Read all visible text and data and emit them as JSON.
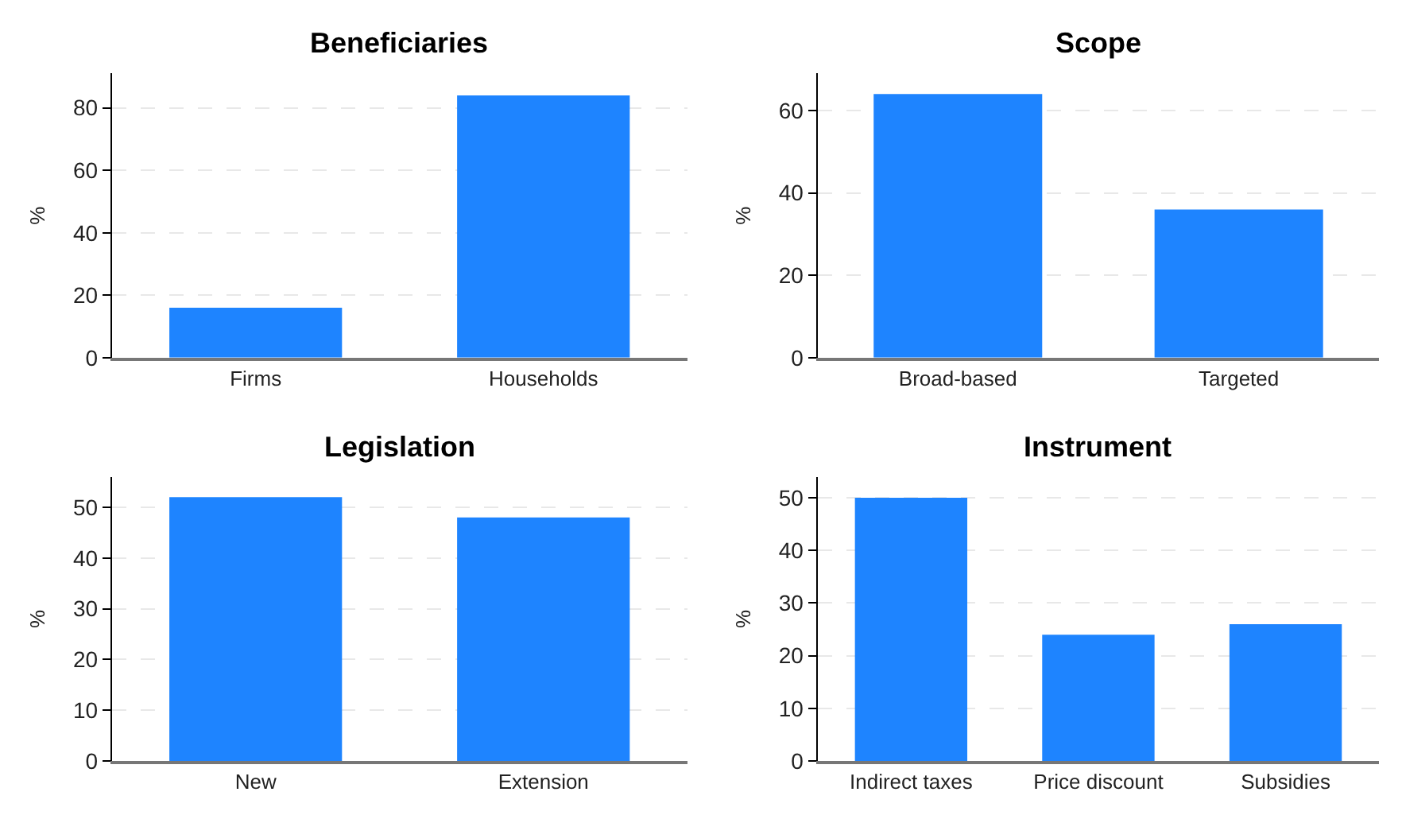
{
  "chart_data": [
    {
      "type": "bar",
      "title": "Beneficiaries",
      "ylabel": "%",
      "categories": [
        "Firms",
        "Households"
      ],
      "values": [
        16,
        84
      ],
      "color": "#1e84ff",
      "ylim": [
        0,
        91
      ],
      "yticks": [
        0,
        20,
        40,
        60,
        80
      ],
      "grid": "y"
    },
    {
      "type": "bar",
      "title": "Scope",
      "ylabel": "%",
      "categories": [
        "Broad-based",
        "Targeted"
      ],
      "values": [
        64,
        36
      ],
      "color": "#1e84ff",
      "ylim": [
        0,
        69
      ],
      "yticks": [
        0,
        20,
        40,
        60
      ],
      "grid": "y"
    },
    {
      "type": "bar",
      "title": "Legislation",
      "ylabel": "%",
      "categories": [
        "New",
        "Extension"
      ],
      "values": [
        52,
        48
      ],
      "color": "#1e84ff",
      "ylim": [
        0,
        56
      ],
      "yticks": [
        0,
        10,
        20,
        30,
        40,
        50
      ],
      "grid": "y"
    },
    {
      "type": "bar",
      "title": "Instrument",
      "ylabel": "%",
      "categories": [
        "Indirect taxes",
        "Price discount",
        "Subsidies"
      ],
      "values": [
        50,
        24,
        26
      ],
      "color": "#1e84ff",
      "ylim": [
        0,
        54
      ],
      "yticks": [
        0,
        10,
        20,
        30,
        40,
        50
      ],
      "grid": "y"
    }
  ]
}
